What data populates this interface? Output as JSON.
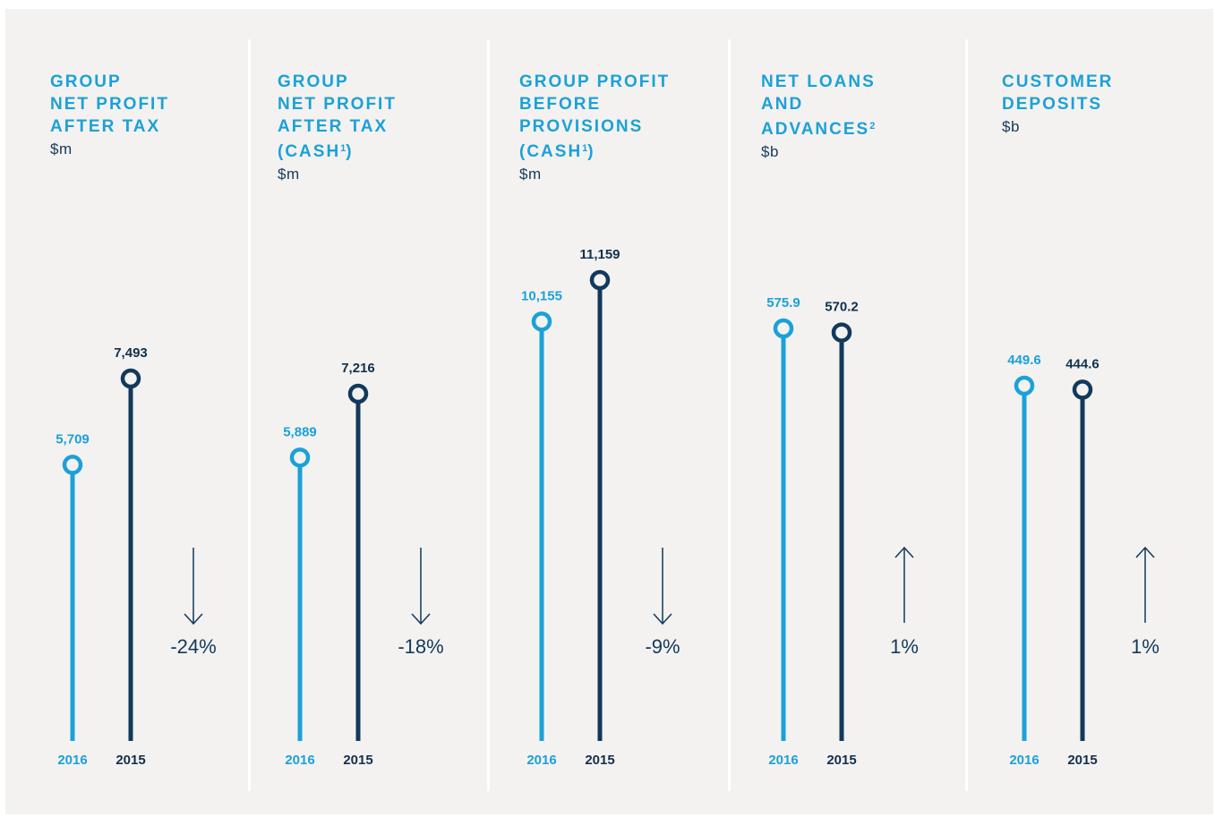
{
  "colors": {
    "current": "#1ba1d8",
    "prior": "#12395b",
    "background": "#f3f2f0",
    "divider": "#ffffff"
  },
  "panels": [
    {
      "title_lines": [
        "GROUP",
        "NET PROFIT",
        "AFTER TAX"
      ],
      "title_sup": "",
      "unit": "$m",
      "change": "-24%",
      "direction": "down"
    },
    {
      "title_lines": [
        "GROUP",
        "NET PROFIT",
        "AFTER TAX",
        "(CASH"
      ],
      "title_sup": "1",
      "title_suffix": ")",
      "unit": "$m",
      "change": "-18%",
      "direction": "down"
    },
    {
      "title_lines": [
        "GROUP PROFIT",
        "BEFORE",
        "PROVISIONS",
        "(CASH"
      ],
      "title_sup": "1",
      "title_suffix": ")",
      "unit": "$m",
      "change": "-9%",
      "direction": "down"
    },
    {
      "title_lines": [
        "NET LOANS",
        "AND",
        "ADVANCES"
      ],
      "title_sup": "2",
      "title_suffix": "",
      "unit": "$b",
      "change": "1%",
      "direction": "up"
    },
    {
      "title_lines": [
        "CUSTOMER",
        "DEPOSITS"
      ],
      "title_sup": "",
      "title_suffix": "",
      "unit": "$b",
      "change": "1%",
      "direction": "up"
    }
  ],
  "chart_data": [
    {
      "type": "lollipop",
      "title": "GROUP NET PROFIT AFTER TAX",
      "unit": "$m",
      "series": [
        {
          "name": "2016",
          "value": 5709,
          "label": "5,709"
        },
        {
          "name": "2015",
          "value": 7493,
          "label": "7,493"
        }
      ],
      "change": "-24%"
    },
    {
      "type": "lollipop",
      "title": "GROUP NET PROFIT AFTER TAX (CASH1)",
      "unit": "$m",
      "series": [
        {
          "name": "2016",
          "value": 5889,
          "label": "5,889"
        },
        {
          "name": "2015",
          "value": 7216,
          "label": "7,216"
        }
      ],
      "change": "-18%"
    },
    {
      "type": "lollipop",
      "title": "GROUP PROFIT BEFORE PROVISIONS (CASH1)",
      "unit": "$m",
      "series": [
        {
          "name": "2016",
          "value": 10155,
          "label": "10,155"
        },
        {
          "name": "2015",
          "value": 11159,
          "label": "11,159"
        }
      ],
      "change": "-9%"
    },
    {
      "type": "lollipop",
      "title": "NET LOANS AND ADVANCES2",
      "unit": "$b",
      "series": [
        {
          "name": "2016",
          "value": 575.9,
          "label": "575.9"
        },
        {
          "name": "2015",
          "value": 570.2,
          "label": "570.2"
        }
      ],
      "change": "1%"
    },
    {
      "type": "lollipop",
      "title": "CUSTOMER DEPOSITS",
      "unit": "$b",
      "series": [
        {
          "name": "2016",
          "value": 449.6,
          "label": "449.6"
        },
        {
          "name": "2015",
          "value": 444.6,
          "label": "444.6"
        }
      ],
      "change": "1%"
    }
  ]
}
